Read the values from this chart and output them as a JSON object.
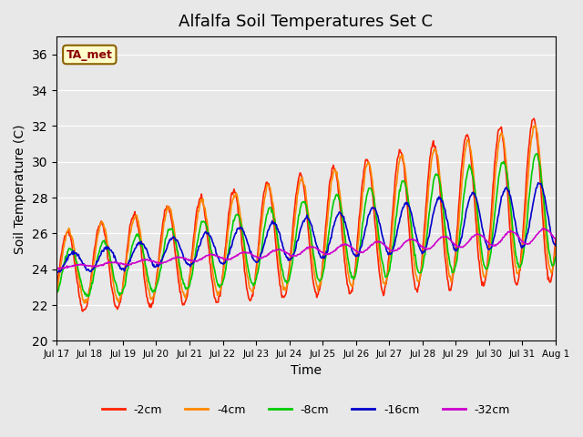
{
  "title": "Alfalfa Soil Temperatures Set C",
  "xlabel": "Time",
  "ylabel": "Soil Temperature (C)",
  "ylim": [
    20,
    37
  ],
  "yticks": [
    20,
    22,
    24,
    26,
    28,
    30,
    32,
    34,
    36
  ],
  "plot_bg_color": "#e8e8e8",
  "annotation_text": "TA_met",
  "annotation_color": "#8b0000",
  "annotation_bg": "#ffffcc",
  "colors": {
    "-2cm": "#ff2200",
    "-4cm": "#ff8800",
    "-8cm": "#00cc00",
    "-16cm": "#0000cc",
    "-32cm": "#cc00cc"
  },
  "x_tick_labels": [
    "Jul 17",
    "Jul 18",
    "Jul 19",
    "Jul 20",
    "Jul 21",
    "Jul 22",
    "Jul 23",
    "Jul 24",
    "Jul 25",
    "Jul 26",
    "Jul 27",
    "Jul 28",
    "Jul 29",
    "Jul 30",
    "Jul 31",
    "Aug 1"
  ],
  "n_days": 15,
  "points_per_day": 48
}
